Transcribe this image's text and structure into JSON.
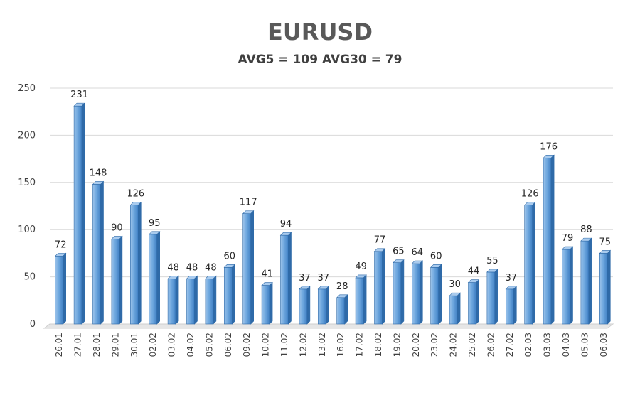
{
  "chart_data": {
    "type": "bar",
    "title": "EURUSD",
    "subtitle": "AVG5 = 109 AVG30 = 79",
    "xlabel": "",
    "ylabel": "",
    "ylim": [
      0,
      250
    ],
    "yticks": [
      0,
      50,
      100,
      150,
      200,
      250
    ],
    "grid": true,
    "legend": "none",
    "bar_color": "#5b9bd5",
    "categories": [
      "26.01",
      "27.01",
      "28.01",
      "29.01",
      "30.01",
      "02.02",
      "03.02",
      "04.02",
      "05.02",
      "06.02",
      "09.02",
      "10.02",
      "11.02",
      "12.02",
      "13.02",
      "16.02",
      "17.02",
      "18.02",
      "19.02",
      "20.02",
      "23.02",
      "24.02",
      "25.02",
      "26.02",
      "27.02",
      "02.03",
      "03.03",
      "04.03",
      "05.03",
      "06.03"
    ],
    "values": [
      72,
      231,
      148,
      90,
      126,
      95,
      48,
      48,
      48,
      60,
      117,
      41,
      94,
      37,
      37,
      28,
      49,
      77,
      65,
      64,
      60,
      30,
      44,
      55,
      37,
      126,
      176,
      79,
      88,
      75
    ]
  }
}
